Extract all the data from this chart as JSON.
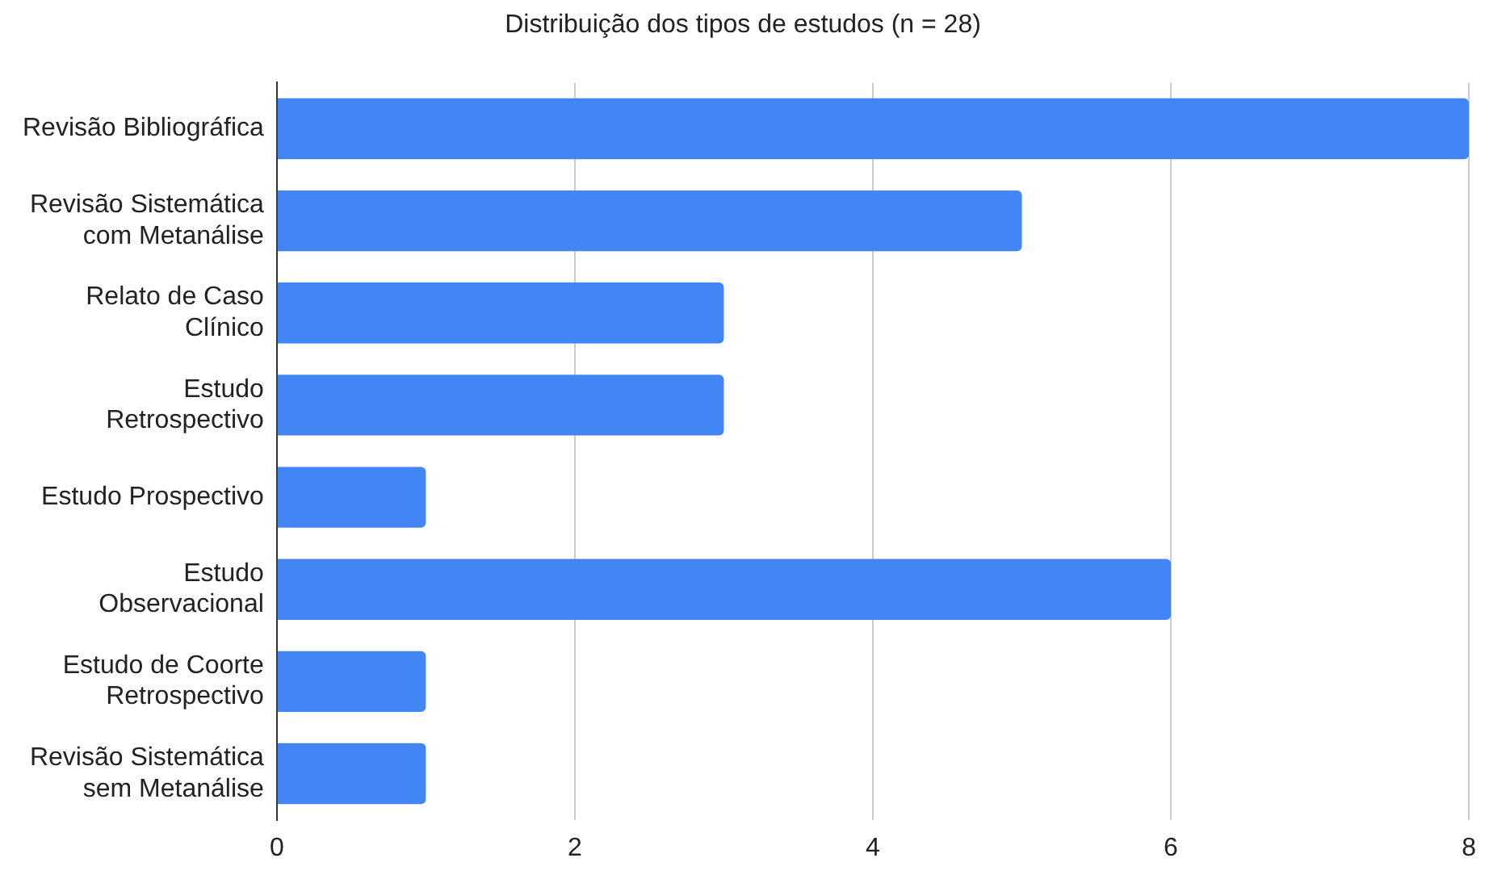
{
  "chart_data": {
    "type": "bar",
    "orientation": "horizontal",
    "title": "Distribuição dos tipos de estudos (n = 28)",
    "categories": [
      "Revisão Bibliográfica",
      "Revisão Sistemática\ncom Metanálise",
      "Relato de Caso\nClínico",
      "Estudo\nRetrospectivo",
      "Estudo Prospectivo",
      "Estudo\nObservacional",
      "Estudo de Coorte\nRetrospectivo",
      "Revisão Sistemática\nsem Metanálise"
    ],
    "values": [
      8,
      5,
      3,
      3,
      1,
      6,
      1,
      1
    ],
    "color": "#4285f4",
    "xlim": [
      0,
      8
    ],
    "xticks": [
      0,
      2,
      4,
      6,
      8
    ],
    "grid": "x",
    "legend": false
  }
}
